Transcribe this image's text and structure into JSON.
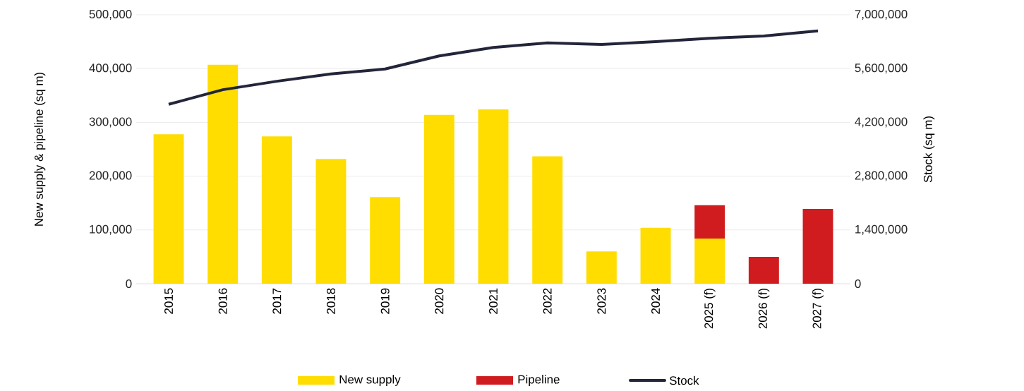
{
  "chart_data": {
    "type": "bar",
    "stacked": true,
    "ylabel": "New supply & pipeline (sq m)",
    "y2label": "Stock (sq m)",
    "categories": [
      "2015",
      "2016",
      "2017",
      "2018",
      "2019",
      "2020",
      "2021",
      "2022",
      "2023",
      "2024",
      "2025 (f)",
      "2026 (f)",
      "2027 (f)"
    ],
    "series": [
      {
        "name": "New supply",
        "color": "#ffdd00",
        "values": [
          278000,
          407000,
          274000,
          232000,
          161000,
          314000,
          324000,
          237000,
          60000,
          104000,
          84000,
          null,
          null
        ]
      },
      {
        "name": "Pipeline",
        "color": "#d01c1f",
        "values": [
          null,
          null,
          null,
          null,
          null,
          null,
          null,
          null,
          null,
          null,
          62000,
          50000,
          139000
        ]
      },
      {
        "name": "Stock",
        "type": "line",
        "axis": "y2",
        "color": "#23253a",
        "values": [
          4670000,
          5050000,
          5270000,
          5460000,
          5590000,
          5930000,
          6150000,
          6270000,
          6230000,
          6300000,
          6390000,
          6450000,
          6580000
        ]
      }
    ],
    "ylim": [
      0,
      500000
    ],
    "yticks": [
      {
        "value": 0,
        "label": "0"
      },
      {
        "value": 100000,
        "label": "100,000"
      },
      {
        "value": 200000,
        "label": "200,000"
      },
      {
        "value": 300000,
        "label": "300,000"
      },
      {
        "value": 400000,
        "label": "400,000"
      },
      {
        "value": 500000,
        "label": "500,000"
      }
    ],
    "y2lim": [
      0,
      7000000
    ],
    "y2ticks": [
      {
        "value": 0,
        "label": "0"
      },
      {
        "value": 1400000,
        "label": "1,400,000"
      },
      {
        "value": 2800000,
        "label": "2,800,000"
      },
      {
        "value": 4200000,
        "label": "4,200,000"
      },
      {
        "value": 5600000,
        "label": "5,600,000"
      },
      {
        "value": 7000000,
        "label": "7,000,000"
      }
    ],
    "grid": "y",
    "legend": "bottom"
  }
}
